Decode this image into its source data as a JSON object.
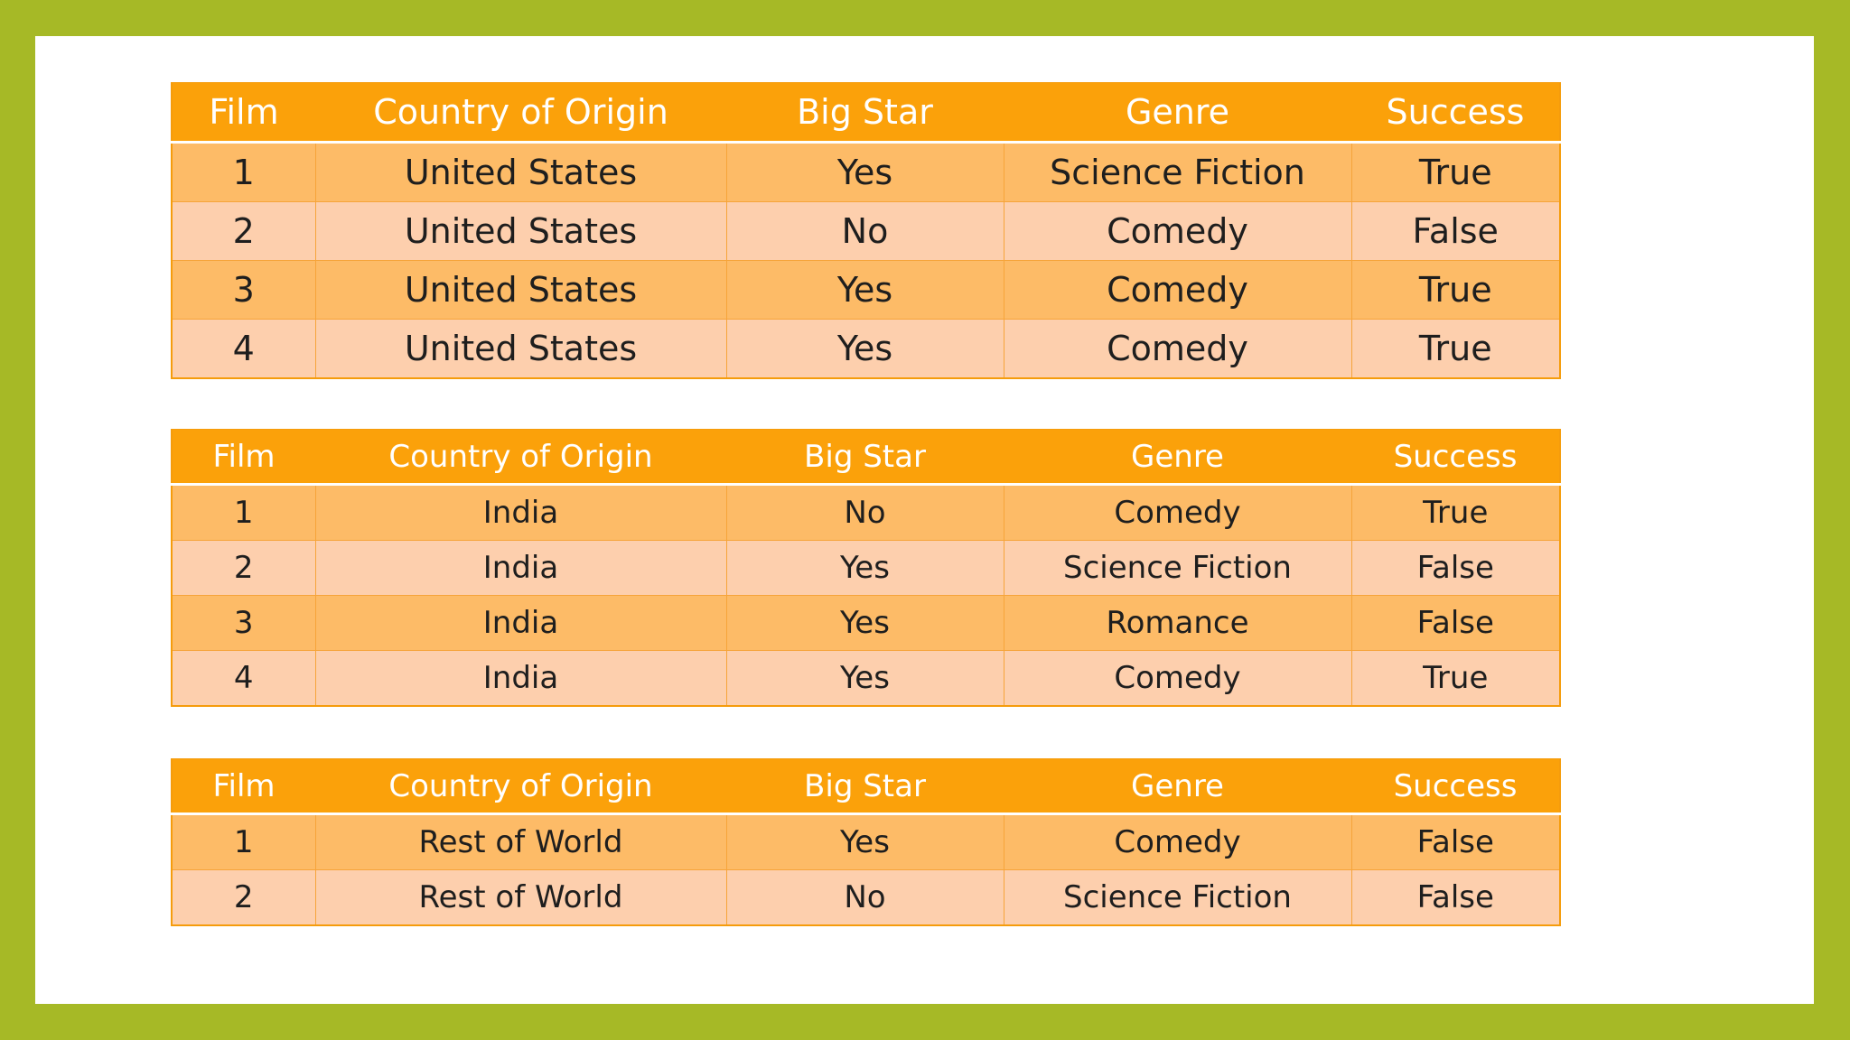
{
  "columns": [
    "Film",
    "Country of Origin",
    "Big Star",
    "Genre",
    "Success"
  ],
  "tables": [
    {
      "rows": [
        [
          "1",
          "United States",
          "Yes",
          "Science Fiction",
          "True"
        ],
        [
          "2",
          "United States",
          "No",
          "Comedy",
          "False"
        ],
        [
          "3",
          "United States",
          "Yes",
          "Comedy",
          "True"
        ],
        [
          "4",
          "United States",
          "Yes",
          "Comedy",
          "True"
        ]
      ]
    },
    {
      "rows": [
        [
          "1",
          "India",
          "No",
          "Comedy",
          "True"
        ],
        [
          "2",
          "India",
          "Yes",
          "Science Fiction",
          "False"
        ],
        [
          "3",
          "India",
          "Yes",
          "Romance",
          "False"
        ],
        [
          "4",
          "India",
          "Yes",
          "Comedy",
          "True"
        ]
      ]
    },
    {
      "rows": [
        [
          "1",
          "Rest of World",
          "Yes",
          "Comedy",
          "False"
        ],
        [
          "2",
          "Rest of World",
          "No",
          "Science Fiction",
          "False"
        ]
      ]
    }
  ],
  "colors": {
    "frame": "#a6b926",
    "header": "#fba10a",
    "row_odd": "#fdbb67",
    "row_even": "#fdcfad"
  }
}
